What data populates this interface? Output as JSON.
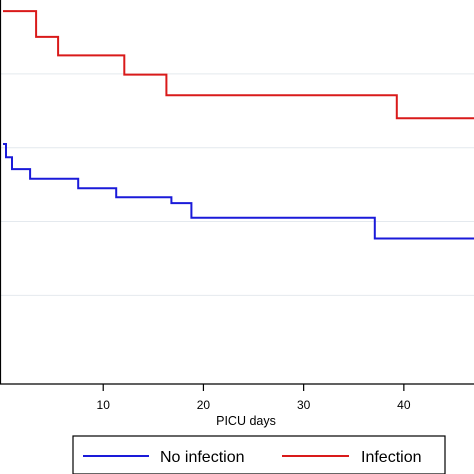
{
  "chart_data": {
    "type": "line",
    "xlabel": "PICU days",
    "ylabel": "",
    "xlim": [
      -0.3,
      47
    ],
    "ylim": [
      0.48,
      1.0
    ],
    "grid": true,
    "legend_position": "bottom",
    "x_ticks": [
      10,
      20,
      30,
      40
    ],
    "y_grid_values": [
      0.6,
      0.7,
      0.8,
      0.9
    ],
    "series": [
      {
        "name": "No infection",
        "color": "#1a1ad9",
        "x": [
          0,
          0.3,
          0.3,
          0.9,
          0.9,
          2.7,
          2.7,
          7.5,
          7.5,
          11.3,
          11.3,
          16.8,
          16.8,
          18.8,
          18.8,
          37.1,
          37.1,
          47
        ],
        "y": [
          0.805,
          0.805,
          0.787,
          0.787,
          0.771,
          0.771,
          0.758,
          0.758,
          0.745,
          0.745,
          0.733,
          0.733,
          0.725,
          0.725,
          0.705,
          0.705,
          0.677,
          0.677
        ]
      },
      {
        "name": "Infection",
        "color": "#d91a1a",
        "x": [
          0,
          3.3,
          3.3,
          5.5,
          5.5,
          12.1,
          12.1,
          16.3,
          16.3,
          39.3,
          39.3,
          47
        ],
        "y": [
          0.985,
          0.985,
          0.95,
          0.95,
          0.925,
          0.925,
          0.899,
          0.899,
          0.871,
          0.871,
          0.84,
          0.84
        ]
      }
    ]
  }
}
